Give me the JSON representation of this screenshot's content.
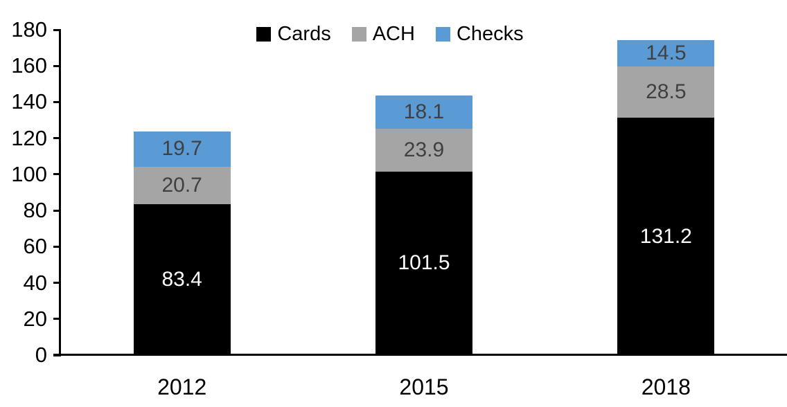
{
  "chart_data": {
    "type": "bar",
    "stacked": true,
    "title": "",
    "categories": [
      "2012",
      "2015",
      "2018"
    ],
    "series": [
      {
        "name": "Cards",
        "values": [
          83.4,
          101.5,
          131.2
        ],
        "color": "#000000",
        "label_color": "#ffffff"
      },
      {
        "name": "ACH",
        "values": [
          20.7,
          23.9,
          28.5
        ],
        "color": "#a5a5a5",
        "label_color": "#404040"
      },
      {
        "name": "Checks",
        "values": [
          19.7,
          18.1,
          14.5
        ],
        "color": "#5b9bd5",
        "label_color": "#404040"
      }
    ],
    "legend": {
      "position": "top",
      "entries": [
        "Cards",
        "ACH",
        "Checks"
      ]
    },
    "xlabel": "",
    "ylabel": "",
    "ylim": [
      0,
      180
    ],
    "ytick_step": 20,
    "grid": false,
    "axis_color": "#000000",
    "background_color": "#ffffff"
  }
}
